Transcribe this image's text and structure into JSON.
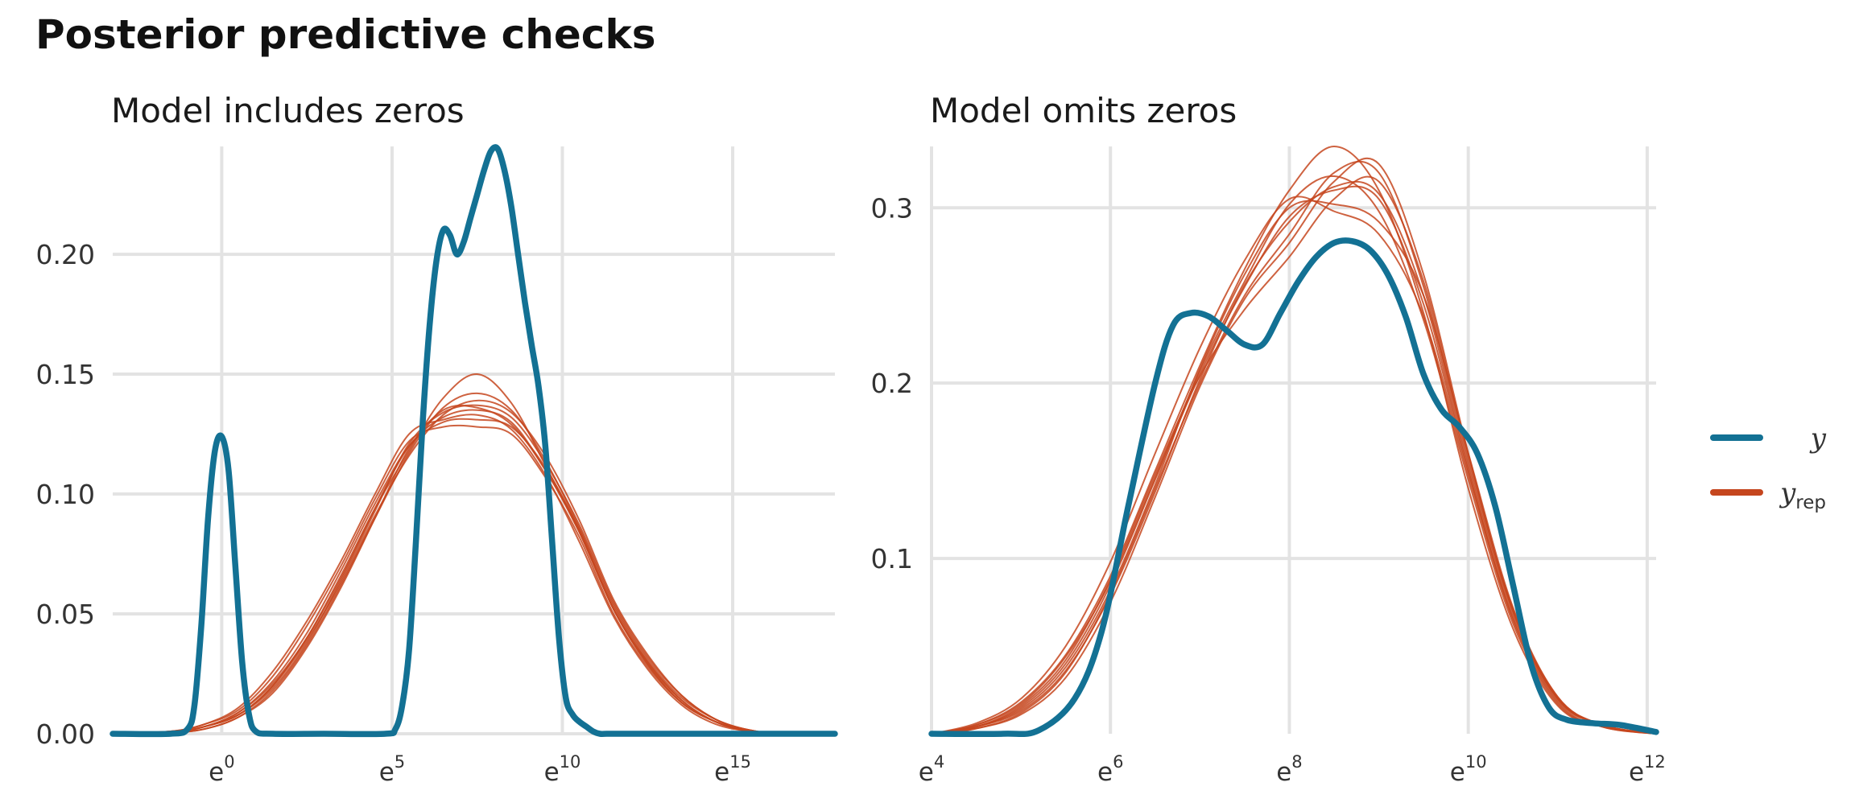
{
  "title": "Posterior predictive checks",
  "colors": {
    "y": "#137194",
    "yrep": "#c5461e",
    "grid": "#e3e3e3"
  },
  "legend": [
    {
      "label": "y",
      "sub": "",
      "color": "#137194",
      "series": "y"
    },
    {
      "label": "y",
      "sub": "rep",
      "color": "#c5461e",
      "series": "yrep"
    }
  ],
  "chart_data": [
    {
      "type": "line",
      "title": "Model includes zeros",
      "xlabel": "",
      "ylabel": "",
      "xscale": "log (base e)",
      "xlim": [
        -3.2,
        18
      ],
      "ylim": [
        0,
        0.245
      ],
      "xticks": [
        0,
        5,
        10,
        15
      ],
      "xtick_labels": [
        {
          "base": "e",
          "exp": "0"
        },
        {
          "base": "e",
          "exp": "5"
        },
        {
          "base": "e",
          "exp": "10"
        },
        {
          "base": "e",
          "exp": "15"
        }
      ],
      "yticks": [
        0,
        0.05,
        0.1,
        0.15,
        0.2
      ],
      "ytick_labels": [
        "0.00",
        "0.05",
        "0.10",
        "0.15",
        "0.20"
      ],
      "grid": true,
      "series": [
        {
          "key": "y",
          "x": [
            -3.2,
            -1.5,
            -1.0,
            -0.8,
            -0.6,
            -0.4,
            -0.2,
            0.0,
            0.2,
            0.4,
            0.6,
            0.8,
            1.0,
            1.5,
            3.0,
            4.8,
            5.1,
            5.3,
            5.5,
            5.7,
            5.9,
            6.1,
            6.3,
            6.5,
            6.7,
            6.9,
            7.1,
            7.3,
            7.5,
            7.7,
            7.9,
            8.1,
            8.3,
            8.5,
            8.7,
            8.9,
            9.1,
            9.3,
            9.5,
            9.7,
            9.9,
            10.1,
            10.3,
            10.5,
            10.7,
            10.9,
            11.1,
            11.3,
            11.6,
            12.0,
            13.0,
            18.0
          ],
          "y": [
            0,
            0,
            0.002,
            0.012,
            0.045,
            0.09,
            0.118,
            0.124,
            0.11,
            0.07,
            0.03,
            0.008,
            0.001,
            0,
            0,
            0,
            0.002,
            0.012,
            0.035,
            0.08,
            0.13,
            0.17,
            0.197,
            0.21,
            0.208,
            0.2,
            0.205,
            0.215,
            0.225,
            0.235,
            0.243,
            0.244,
            0.235,
            0.22,
            0.2,
            0.18,
            0.162,
            0.145,
            0.12,
            0.08,
            0.04,
            0.015,
            0.008,
            0.005,
            0.003,
            0.001,
            0,
            0,
            0,
            0,
            0,
            0
          ]
        },
        {
          "key": "yrep",
          "x": [
            -3.2,
            -1.5,
            -0.5,
            0.5,
            1.5,
            2.5,
            3.5,
            4.5,
            5.5,
            6.5,
            7.5,
            8.5,
            9.5,
            10.5,
            11.5,
            12.5,
            13.5,
            14.5,
            15.5,
            16.5,
            18.0
          ],
          "y": [
            0,
            0.0005,
            0.003,
            0.008,
            0.02,
            0.04,
            0.065,
            0.094,
            0.12,
            0.132,
            0.135,
            0.13,
            0.11,
            0.085,
            0.052,
            0.03,
            0.014,
            0.005,
            0.001,
            0,
            0
          ]
        },
        {
          "key": "yrep",
          "x": [
            -3.2,
            -1.5,
            -0.5,
            0.5,
            1.5,
            2.5,
            3.5,
            4.5,
            5.5,
            6.5,
            7.5,
            8.5,
            9.5,
            10.5,
            11.5,
            12.5,
            13.5,
            14.5,
            15.5,
            16.5,
            18.0
          ],
          "y": [
            0,
            0.0005,
            0.002,
            0.007,
            0.018,
            0.037,
            0.062,
            0.09,
            0.117,
            0.136,
            0.142,
            0.135,
            0.114,
            0.086,
            0.054,
            0.031,
            0.015,
            0.006,
            0.0015,
            0,
            0
          ]
        },
        {
          "key": "yrep",
          "x": [
            -3.2,
            -1.5,
            -0.5,
            0.5,
            1.5,
            2.5,
            3.5,
            4.5,
            5.5,
            6.5,
            7.5,
            8.5,
            9.5,
            10.5,
            11.5,
            12.5,
            13.5,
            14.5,
            15.5,
            16.5,
            18.0
          ],
          "y": [
            0,
            0.001,
            0.004,
            0.01,
            0.024,
            0.045,
            0.07,
            0.098,
            0.122,
            0.128,
            0.128,
            0.125,
            0.107,
            0.082,
            0.05,
            0.028,
            0.013,
            0.005,
            0.001,
            0,
            0
          ]
        },
        {
          "key": "yrep",
          "x": [
            -3.2,
            -1.5,
            -0.5,
            0.5,
            1.5,
            2.5,
            3.5,
            4.5,
            5.5,
            6.5,
            7.5,
            8.5,
            9.5,
            10.5,
            11.5,
            12.5,
            13.5,
            14.5,
            15.5,
            16.5,
            18.0
          ],
          "y": [
            0,
            0.0005,
            0.003,
            0.009,
            0.021,
            0.04,
            0.066,
            0.094,
            0.118,
            0.14,
            0.15,
            0.138,
            0.112,
            0.084,
            0.052,
            0.029,
            0.013,
            0.005,
            0.001,
            0,
            0
          ]
        },
        {
          "key": "yrep",
          "x": [
            -3.2,
            -1.5,
            -0.5,
            0.5,
            1.5,
            2.5,
            3.5,
            4.5,
            5.5,
            6.5,
            7.5,
            8.5,
            9.5,
            10.5,
            11.5,
            12.5,
            13.5,
            14.5,
            15.5,
            16.5,
            18.0
          ],
          "y": [
            0,
            0.0005,
            0.003,
            0.008,
            0.019,
            0.038,
            0.064,
            0.093,
            0.121,
            0.134,
            0.137,
            0.132,
            0.113,
            0.087,
            0.055,
            0.032,
            0.016,
            0.006,
            0.0015,
            0,
            0
          ]
        },
        {
          "key": "yrep",
          "x": [
            -3.2,
            -1.5,
            -0.5,
            0.5,
            1.5,
            2.5,
            3.5,
            4.5,
            5.5,
            6.5,
            7.5,
            8.5,
            9.5,
            10.5,
            11.5,
            12.5,
            13.5,
            14.5,
            15.5,
            16.5,
            18.0
          ],
          "y": [
            0,
            0.001,
            0.004,
            0.011,
            0.026,
            0.047,
            0.072,
            0.1,
            0.125,
            0.131,
            0.133,
            0.127,
            0.108,
            0.08,
            0.049,
            0.027,
            0.012,
            0.004,
            0.001,
            0,
            0
          ]
        },
        {
          "key": "yrep",
          "x": [
            -3.2,
            -1.5,
            -0.5,
            0.5,
            1.5,
            2.5,
            3.5,
            4.5,
            5.5,
            6.5,
            7.5,
            8.5,
            9.5,
            10.5,
            11.5,
            12.5,
            13.5,
            14.5,
            15.5,
            16.5,
            18.0
          ],
          "y": [
            0,
            0.0005,
            0.003,
            0.008,
            0.02,
            0.039,
            0.063,
            0.091,
            0.116,
            0.133,
            0.139,
            0.134,
            0.116,
            0.089,
            0.056,
            0.033,
            0.016,
            0.006,
            0.0015,
            0,
            0
          ]
        },
        {
          "key": "yrep",
          "x": [
            -3.2,
            -1.5,
            -0.5,
            0.5,
            1.5,
            2.5,
            3.5,
            4.5,
            5.5,
            6.5,
            7.5,
            8.5,
            9.5,
            10.5,
            11.5,
            12.5,
            13.5,
            14.5,
            15.5,
            16.5,
            18.0
          ],
          "y": [
            0,
            0.0005,
            0.002,
            0.007,
            0.017,
            0.036,
            0.061,
            0.09,
            0.119,
            0.135,
            0.136,
            0.129,
            0.11,
            0.084,
            0.053,
            0.03,
            0.014,
            0.005,
            0.001,
            0,
            0
          ]
        },
        {
          "key": "yrep",
          "x": [
            -3.2,
            -1.5,
            -0.5,
            0.5,
            1.5,
            2.5,
            3.5,
            4.5,
            5.5,
            6.5,
            7.5,
            8.5,
            9.5,
            10.5,
            11.5,
            12.5,
            13.5,
            14.5,
            15.5,
            16.5,
            18.0
          ],
          "y": [
            0,
            0.001,
            0.003,
            0.009,
            0.022,
            0.042,
            0.068,
            0.096,
            0.12,
            0.13,
            0.131,
            0.128,
            0.111,
            0.085,
            0.052,
            0.029,
            0.013,
            0.005,
            0.001,
            0,
            0
          ]
        }
      ]
    },
    {
      "type": "line",
      "title": "Model omits zeros",
      "xlabel": "",
      "ylabel": "",
      "xscale": "log (base e)",
      "xlim": [
        4,
        12.1
      ],
      "ylim": [
        0,
        0.335
      ],
      "xticks": [
        4,
        6,
        8,
        10,
        12
      ],
      "xtick_labels": [
        {
          "base": "e",
          "exp": "4"
        },
        {
          "base": "e",
          "exp": "6"
        },
        {
          "base": "e",
          "exp": "8"
        },
        {
          "base": "e",
          "exp": "10"
        },
        {
          "base": "e",
          "exp": "12"
        }
      ],
      "yticks": [
        0.1,
        0.2,
        0.3
      ],
      "ytick_labels": [
        "0.1",
        "0.2",
        "0.3"
      ],
      "grid": true,
      "series": [
        {
          "key": "y",
          "x": [
            4.0,
            4.8,
            5.2,
            5.6,
            5.9,
            6.2,
            6.5,
            6.7,
            6.9,
            7.1,
            7.3,
            7.5,
            7.7,
            7.9,
            8.1,
            8.3,
            8.5,
            8.7,
            8.9,
            9.1,
            9.3,
            9.5,
            9.7,
            9.9,
            10.1,
            10.3,
            10.5,
            10.7,
            10.9,
            11.1,
            11.4,
            11.7,
            12.1
          ],
          "y": [
            0,
            0,
            0.002,
            0.02,
            0.058,
            0.13,
            0.2,
            0.233,
            0.24,
            0.238,
            0.23,
            0.222,
            0.222,
            0.24,
            0.258,
            0.272,
            0.28,
            0.281,
            0.276,
            0.262,
            0.238,
            0.205,
            0.185,
            0.175,
            0.16,
            0.13,
            0.085,
            0.04,
            0.015,
            0.008,
            0.006,
            0.005,
            0.001
          ]
        },
        {
          "key": "yrep",
          "x": [
            4.0,
            4.5,
            5.0,
            5.5,
            6.0,
            6.5,
            7.0,
            7.5,
            8.0,
            8.5,
            9.0,
            9.5,
            10.0,
            10.5,
            11.0,
            11.5,
            12.1
          ],
          "y": [
            0,
            0.004,
            0.015,
            0.04,
            0.085,
            0.145,
            0.205,
            0.255,
            0.295,
            0.31,
            0.305,
            0.245,
            0.15,
            0.065,
            0.018,
            0.004,
            0
          ]
        },
        {
          "key": "yrep",
          "x": [
            4.0,
            4.5,
            5.0,
            5.5,
            6.0,
            6.5,
            7.0,
            7.5,
            8.0,
            8.5,
            9.0,
            9.5,
            10.0,
            10.5,
            11.0,
            11.5,
            12.1
          ],
          "y": [
            0,
            0.003,
            0.012,
            0.035,
            0.08,
            0.14,
            0.2,
            0.25,
            0.285,
            0.32,
            0.32,
            0.255,
            0.155,
            0.07,
            0.02,
            0.005,
            0
          ]
        },
        {
          "key": "yrep",
          "x": [
            4.0,
            4.5,
            5.0,
            5.5,
            6.0,
            6.5,
            7.0,
            7.5,
            8.0,
            8.5,
            9.0,
            9.5,
            10.0,
            10.5,
            11.0,
            11.5,
            12.1
          ],
          "y": [
            0,
            0.005,
            0.018,
            0.045,
            0.09,
            0.15,
            0.21,
            0.265,
            0.31,
            0.335,
            0.31,
            0.24,
            0.14,
            0.06,
            0.016,
            0.004,
            0
          ]
        },
        {
          "key": "yrep",
          "x": [
            4.0,
            4.5,
            5.0,
            5.5,
            6.0,
            6.5,
            7.0,
            7.5,
            8.0,
            8.5,
            9.0,
            9.5,
            10.0,
            10.5,
            11.0,
            11.5,
            12.1
          ],
          "y": [
            0,
            0.004,
            0.014,
            0.038,
            0.082,
            0.142,
            0.208,
            0.262,
            0.3,
            0.302,
            0.292,
            0.25,
            0.16,
            0.072,
            0.021,
            0.005,
            0
          ]
        },
        {
          "key": "yrep",
          "x": [
            4.0,
            4.5,
            5.0,
            5.5,
            6.0,
            6.5,
            7.0,
            7.5,
            8.0,
            8.5,
            9.0,
            9.5,
            10.0,
            10.5,
            11.0,
            11.5,
            12.1
          ],
          "y": [
            0,
            0.006,
            0.02,
            0.05,
            0.098,
            0.16,
            0.22,
            0.27,
            0.305,
            0.298,
            0.285,
            0.238,
            0.148,
            0.066,
            0.019,
            0.005,
            0
          ]
        },
        {
          "key": "yrep",
          "x": [
            4.0,
            4.5,
            5.0,
            5.5,
            6.0,
            6.5,
            7.0,
            7.5,
            8.0,
            8.5,
            9.0,
            9.5,
            10.0,
            10.5,
            11.0,
            11.5,
            12.1
          ],
          "y": [
            0,
            0.003,
            0.011,
            0.032,
            0.075,
            0.135,
            0.198,
            0.248,
            0.28,
            0.315,
            0.325,
            0.262,
            0.16,
            0.07,
            0.02,
            0.005,
            0
          ]
        },
        {
          "key": "yrep",
          "x": [
            4.0,
            4.5,
            5.0,
            5.5,
            6.0,
            6.5,
            7.0,
            7.5,
            8.0,
            8.5,
            9.0,
            9.5,
            10.0,
            10.5,
            11.0,
            11.5,
            12.1
          ],
          "y": [
            0,
            0.004,
            0.016,
            0.042,
            0.088,
            0.148,
            0.204,
            0.242,
            0.272,
            0.305,
            0.315,
            0.258,
            0.158,
            0.071,
            0.021,
            0.005,
            0
          ]
        },
        {
          "key": "yrep",
          "x": [
            4.0,
            4.5,
            5.0,
            5.5,
            6.0,
            6.5,
            7.0,
            7.5,
            8.0,
            8.5,
            9.0,
            9.5,
            10.0,
            10.5,
            11.0,
            11.5,
            12.1
          ],
          "y": [
            0,
            0.005,
            0.017,
            0.044,
            0.087,
            0.146,
            0.207,
            0.258,
            0.302,
            0.318,
            0.298,
            0.236,
            0.145,
            0.063,
            0.017,
            0.004,
            0
          ]
        },
        {
          "key": "yrep",
          "x": [
            4.0,
            4.5,
            5.0,
            5.5,
            6.0,
            6.5,
            7.0,
            7.5,
            8.0,
            8.5,
            9.0,
            9.5,
            10.0,
            10.5,
            11.0,
            11.5,
            12.1
          ],
          "y": [
            0,
            0.004,
            0.013,
            0.036,
            0.079,
            0.138,
            0.202,
            0.256,
            0.292,
            0.312,
            0.308,
            0.25,
            0.152,
            0.068,
            0.02,
            0.005,
            0
          ]
        }
      ]
    }
  ]
}
